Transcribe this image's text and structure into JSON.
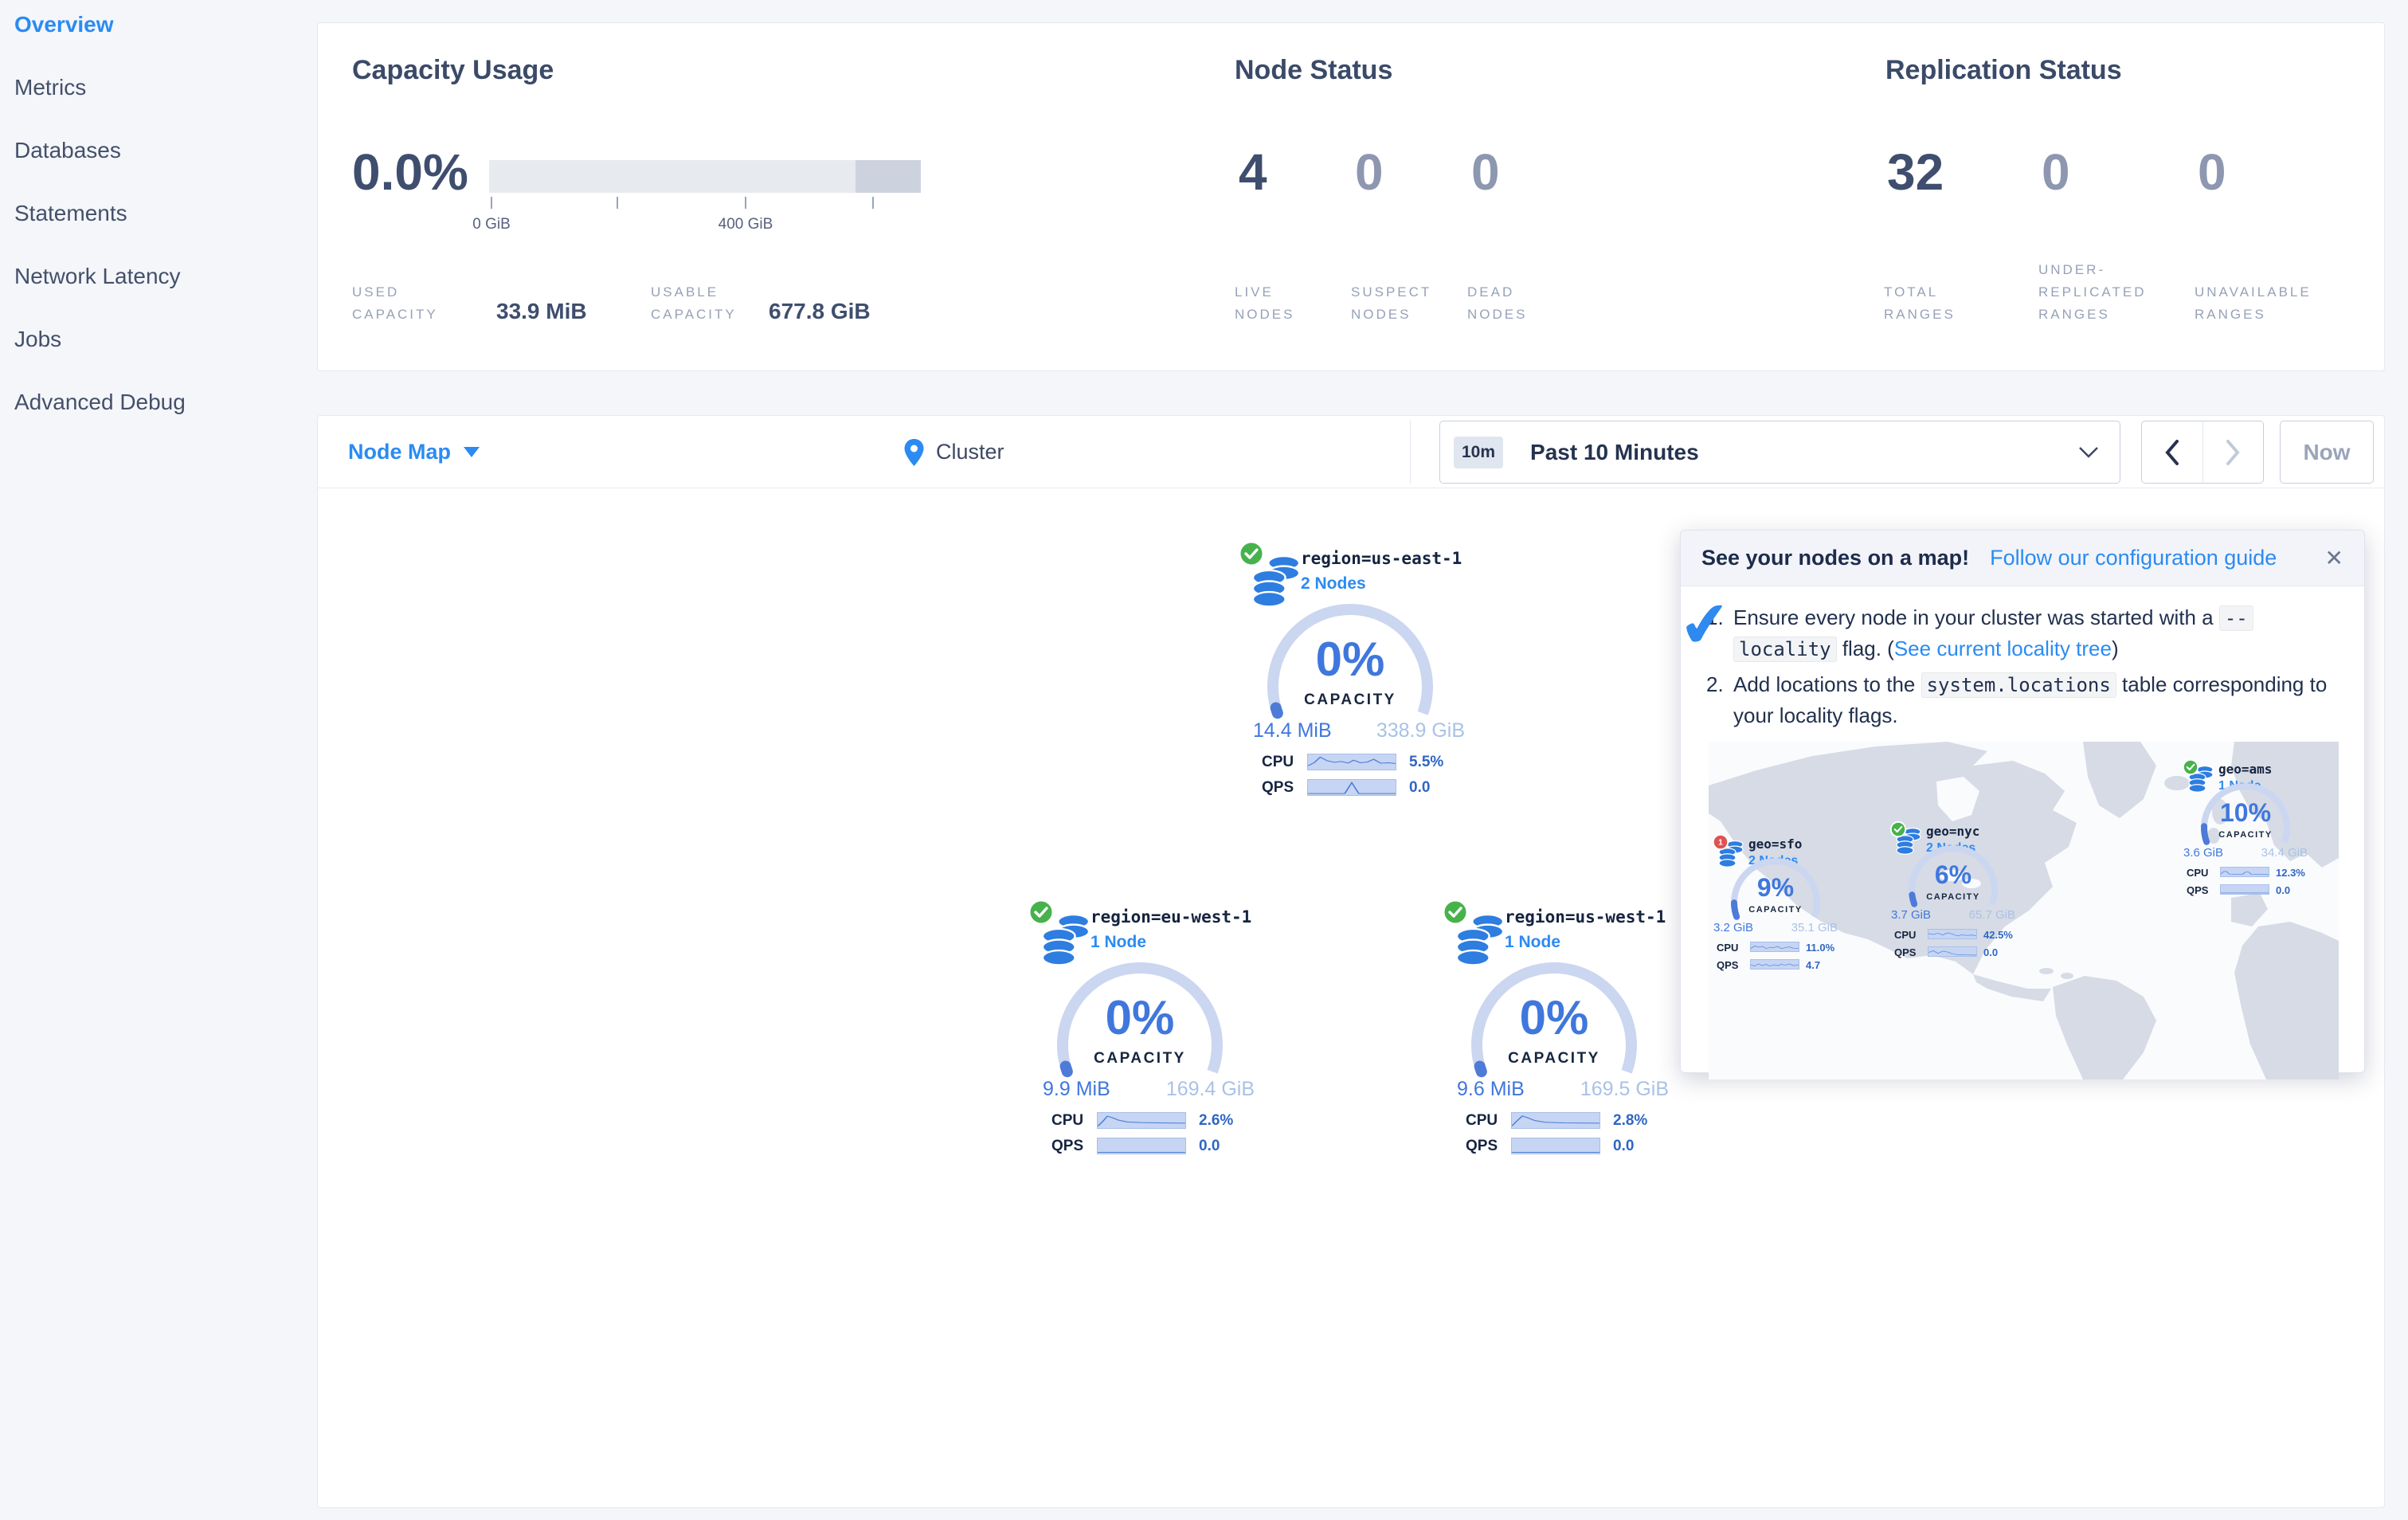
{
  "sidebar": {
    "items": [
      {
        "label": "Overview"
      },
      {
        "label": "Metrics"
      },
      {
        "label": "Databases"
      },
      {
        "label": "Statements"
      },
      {
        "label": "Network Latency"
      },
      {
        "label": "Jobs"
      },
      {
        "label": "Advanced Debug"
      }
    ]
  },
  "overview": {
    "capacity": {
      "title": "Capacity Usage",
      "percent": "0.0%",
      "tick_label_0": "0 GiB",
      "tick_label_400": "400 GiB",
      "used_label": "USED\nCAPACITY",
      "used_value": "33.9 MiB",
      "usable_label": "USABLE\nCAPACITY",
      "usable_value": "677.8 GiB"
    },
    "node_status": {
      "title": "Node Status",
      "stats": [
        {
          "value": "4",
          "label": "LIVE\nNODES"
        },
        {
          "value": "0",
          "label": "SUSPECT\nNODES"
        },
        {
          "value": "0",
          "label": "DEAD\nNODES"
        }
      ]
    },
    "replication": {
      "title": "Replication Status",
      "stats": [
        {
          "value": "32",
          "label": "TOTAL\nRANGES"
        },
        {
          "value": "0",
          "label": "UNDER-\nREPLICATED\nRANGES"
        },
        {
          "value": "0",
          "label": "UNAVAILABLE\nRANGES"
        }
      ]
    }
  },
  "toolbar": {
    "view": "Node Map",
    "breadcrumb": "Cluster",
    "time_badge": "10m",
    "time_label": "Past 10 Minutes",
    "now": "Now"
  },
  "labels": {
    "cpu": "CPU",
    "qps": "QPS"
  },
  "regions": {
    "big": [
      {
        "name": "region=us-east-1",
        "nodes": "2 Nodes",
        "percent": "0%",
        "percent_value": 0,
        "capacity_label": "CAPACITY",
        "used": "14.4 MiB",
        "total": "338.9 GiB",
        "cpu": "5.5%",
        "qps": "0.0",
        "status": "ok",
        "badge": "",
        "cpu_spark": [
          [
            0,
            75
          ],
          [
            7,
            55
          ],
          [
            14,
            18
          ],
          [
            22,
            42
          ],
          [
            30,
            52
          ],
          [
            38,
            47
          ],
          [
            46,
            57
          ],
          [
            52,
            38
          ],
          [
            60,
            55
          ],
          [
            68,
            50
          ],
          [
            75,
            32
          ],
          [
            83,
            58
          ],
          [
            92,
            55
          ],
          [
            100,
            60
          ]
        ],
        "qps_spark": [
          [
            0,
            90
          ],
          [
            42,
            90
          ],
          [
            50,
            18
          ],
          [
            58,
            90
          ],
          [
            100,
            90
          ]
        ]
      },
      {
        "name": "region=eu-west-1",
        "nodes": "1 Node",
        "percent": "0%",
        "percent_value": 0,
        "capacity_label": "CAPACITY",
        "used": "9.9 MiB",
        "total": "169.4 GiB",
        "cpu": "2.6%",
        "qps": "0.0",
        "status": "ok",
        "badge": "",
        "cpu_spark": [
          [
            0,
            88
          ],
          [
            6,
            55
          ],
          [
            11,
            22
          ],
          [
            16,
            30
          ],
          [
            24,
            48
          ],
          [
            34,
            60
          ],
          [
            50,
            64
          ],
          [
            70,
            66
          ],
          [
            100,
            68
          ]
        ],
        "qps_spark": [
          [
            0,
            92
          ],
          [
            100,
            92
          ]
        ]
      },
      {
        "name": "region=us-west-1",
        "nodes": "1 Node",
        "percent": "0%",
        "percent_value": 0,
        "capacity_label": "CAPACITY",
        "used": "9.6 MiB",
        "total": "169.5 GiB",
        "cpu": "2.8%",
        "qps": "0.0",
        "status": "ok",
        "badge": "",
        "cpu_spark": [
          [
            0,
            86
          ],
          [
            6,
            52
          ],
          [
            12,
            20
          ],
          [
            18,
            32
          ],
          [
            26,
            50
          ],
          [
            38,
            62
          ],
          [
            60,
            66
          ],
          [
            100,
            68
          ]
        ],
        "qps_spark": [
          [
            0,
            92
          ],
          [
            100,
            92
          ]
        ]
      }
    ],
    "mini": [
      {
        "name": "geo=sfo",
        "nodes": "2 Nodes",
        "percent": "9%",
        "percent_value": 9,
        "capacity_label": "CAPACITY",
        "used": "3.2 GiB",
        "total": "35.1 GiB",
        "cpu": "11.0%",
        "qps": "4.7",
        "status": "warn",
        "badge": "1",
        "cpu_spark": [
          [
            0,
            70
          ],
          [
            8,
            40
          ],
          [
            16,
            55
          ],
          [
            24,
            45
          ],
          [
            32,
            70
          ],
          [
            40,
            55
          ],
          [
            48,
            60
          ],
          [
            56,
            45
          ],
          [
            64,
            70
          ],
          [
            72,
            60
          ],
          [
            80,
            50
          ],
          [
            90,
            68
          ],
          [
            100,
            65
          ]
        ],
        "qps_spark": [
          [
            0,
            55
          ],
          [
            8,
            70
          ],
          [
            16,
            45
          ],
          [
            24,
            65
          ],
          [
            32,
            50
          ],
          [
            40,
            70
          ],
          [
            48,
            55
          ],
          [
            56,
            65
          ],
          [
            64,
            50
          ],
          [
            72,
            60
          ],
          [
            80,
            45
          ],
          [
            90,
            65
          ],
          [
            100,
            55
          ]
        ]
      },
      {
        "name": "geo=nyc",
        "nodes": "2 Nodes",
        "percent": "6%",
        "percent_value": 6,
        "capacity_label": "CAPACITY",
        "used": "3.7 GiB",
        "total": "65.7 GiB",
        "cpu": "42.5%",
        "qps": "0.0",
        "status": "ok",
        "badge": "",
        "cpu_spark": [
          [
            0,
            45
          ],
          [
            10,
            55
          ],
          [
            20,
            40
          ],
          [
            30,
            60
          ],
          [
            40,
            35
          ],
          [
            50,
            50
          ],
          [
            60,
            70
          ],
          [
            70,
            60
          ],
          [
            80,
            65
          ],
          [
            90,
            62
          ],
          [
            100,
            68
          ]
        ],
        "qps_spark": [
          [
            0,
            60
          ],
          [
            10,
            40
          ],
          [
            20,
            70
          ],
          [
            30,
            45
          ],
          [
            40,
            55
          ],
          [
            50,
            75
          ],
          [
            60,
            85
          ],
          [
            75,
            88
          ],
          [
            100,
            90
          ]
        ]
      },
      {
        "name": "geo=ams",
        "nodes": "1 Node",
        "percent": "10%",
        "percent_value": 10,
        "capacity_label": "CAPACITY",
        "used": "3.6 GiB",
        "total": "34.4 GiB",
        "cpu": "12.3%",
        "qps": "0.0",
        "status": "ok",
        "badge": "",
        "cpu_spark": [
          [
            0,
            75
          ],
          [
            6,
            45
          ],
          [
            12,
            45
          ],
          [
            18,
            75
          ],
          [
            30,
            78
          ],
          [
            45,
            78
          ],
          [
            52,
            50
          ],
          [
            58,
            50
          ],
          [
            64,
            78
          ],
          [
            100,
            80
          ]
        ],
        "qps_spark": [
          [
            0,
            90
          ],
          [
            100,
            90
          ]
        ]
      }
    ]
  },
  "tooltip": {
    "title": "See your nodes on a map!",
    "link": "Follow our configuration guide",
    "close": "✕",
    "check": "✔",
    "steps": [
      {
        "num": "1.",
        "pre": "Ensure every node in your cluster was started with a ",
        "code_a": "--",
        "code_b": "locality",
        "mid": " flag. (",
        "link": "See current locality tree",
        "post": ")"
      },
      {
        "num": "2.",
        "pre": "Add locations to the ",
        "code_a": "system.locations",
        "code_b": "",
        "mid": " table corresponding to your locality flags.",
        "link": "",
        "post": ""
      }
    ]
  },
  "colors": {
    "accent_blue": "#2b8bf2",
    "gauge_arc": "#cbd6f0",
    "gauge_fill": "#4d7bd7",
    "status_green": "#47b24c",
    "status_red": "#e05252",
    "bar_light": "#e7eaef",
    "bar_dark": "#cdd3de"
  }
}
